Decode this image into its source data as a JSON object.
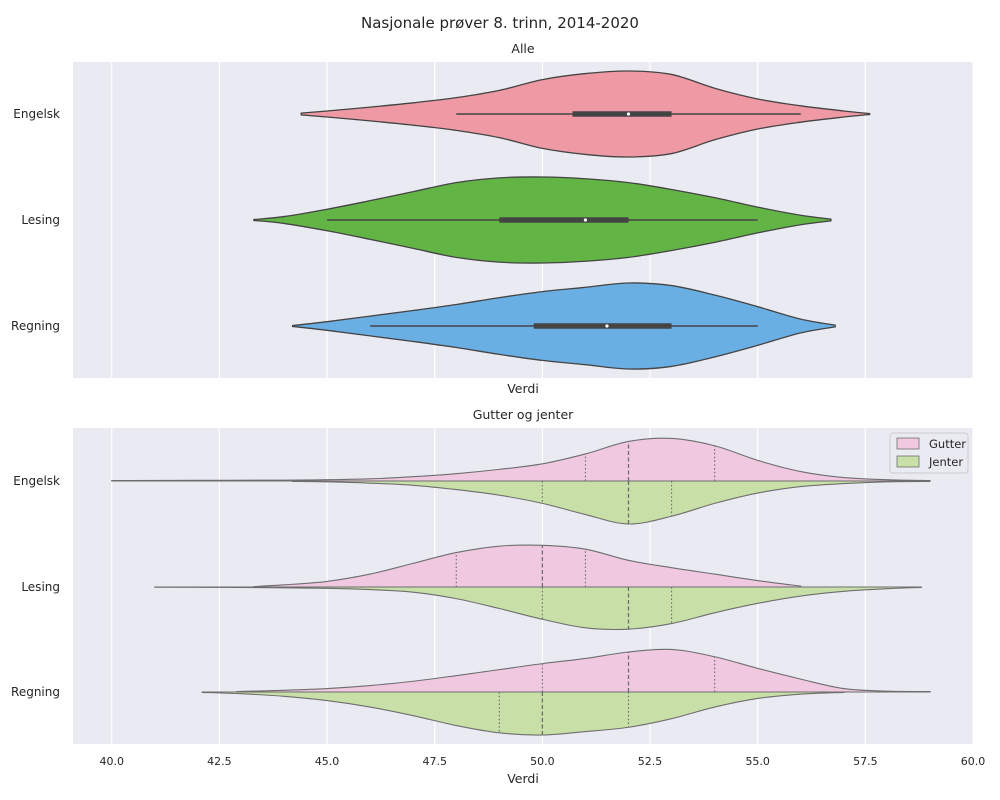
{
  "title": "Nasjonale prøver 8. trinn, 2014-2020",
  "colors": {
    "plot_bg": "#eaeaf2",
    "grid": "#ffffff",
    "outline": "#444444",
    "split_outline": "#6e6e6e",
    "engelsk": "#ee99a3",
    "lesing": "#62b545",
    "regning": "#6aafe4",
    "gutter": "#f0c8e0",
    "jenter": "#c8e0a8"
  },
  "chart_data": [
    {
      "type": "violin",
      "title": "Alle",
      "xlabel": "Verdi",
      "ylabel": "",
      "xlim": [
        39.1,
        60.0
      ],
      "grid": true,
      "categories": [
        "Engelsk",
        "Lesing",
        "Regning"
      ],
      "series": [
        {
          "category": "Engelsk",
          "density": [
            [
              44.4,
              0.02
            ],
            [
              45,
              0.07
            ],
            [
              46,
              0.16
            ],
            [
              47,
              0.26
            ],
            [
              48,
              0.38
            ],
            [
              49,
              0.55
            ],
            [
              50,
              0.8
            ],
            [
              51,
              0.94
            ],
            [
              52,
              1.0
            ],
            [
              53,
              0.92
            ],
            [
              54,
              0.6
            ],
            [
              55,
              0.35
            ],
            [
              56,
              0.19
            ],
            [
              57,
              0.07
            ],
            [
              57.6,
              0.01
            ]
          ],
          "box": [
            50.7,
            53.0
          ],
          "whiskers": [
            48.0,
            56.0
          ],
          "median": 52.0
        },
        {
          "category": "Lesing",
          "density": [
            [
              43.3,
              0.01
            ],
            [
              44,
              0.08
            ],
            [
              45,
              0.25
            ],
            [
              46,
              0.45
            ],
            [
              47,
              0.66
            ],
            [
              48,
              0.87
            ],
            [
              49,
              0.98
            ],
            [
              50,
              1.0
            ],
            [
              51,
              0.96
            ],
            [
              52,
              0.87
            ],
            [
              53,
              0.71
            ],
            [
              54,
              0.52
            ],
            [
              55,
              0.3
            ],
            [
              56,
              0.11
            ],
            [
              56.7,
              0.02
            ]
          ],
          "box": [
            49.0,
            52.0
          ],
          "whiskers": [
            45.0,
            55.0
          ],
          "median": 51.0
        },
        {
          "category": "Regning",
          "density": [
            [
              44.2,
              0.01
            ],
            [
              45,
              0.1
            ],
            [
              46,
              0.23
            ],
            [
              47,
              0.36
            ],
            [
              48,
              0.5
            ],
            [
              49,
              0.66
            ],
            [
              50,
              0.8
            ],
            [
              51,
              0.9
            ],
            [
              52,
              1.0
            ],
            [
              53,
              0.94
            ],
            [
              54,
              0.72
            ],
            [
              55,
              0.45
            ],
            [
              56,
              0.16
            ],
            [
              56.8,
              0.02
            ]
          ],
          "box": [
            49.8,
            53.0
          ],
          "whiskers": [
            46.0,
            55.0
          ],
          "median": 51.5
        }
      ]
    },
    {
      "type": "violin",
      "title": "Gutter og jenter",
      "xlabel": "Verdi",
      "ylabel": "",
      "xlim": [
        39.1,
        60.0
      ],
      "xticks": [
        40.0,
        42.5,
        45.0,
        47.5,
        50.0,
        52.5,
        55.0,
        57.5,
        60.0
      ],
      "xtick_labels": [
        "40.0",
        "42.5",
        "45.0",
        "47.5",
        "50.0",
        "52.5",
        "55.0",
        "57.5",
        "60.0"
      ],
      "grid": true,
      "split": true,
      "legend": {
        "position": "top-right",
        "entries": [
          "Gutter",
          "Jenter"
        ]
      },
      "categories": [
        "Engelsk",
        "Lesing",
        "Regning"
      ],
      "series": [
        {
          "name": "Gutter",
          "groups": [
            {
              "category": "Engelsk",
              "density": [
                [
                  40,
                  0.01
                ],
                [
                  42,
                  0.015
                ],
                [
                  44,
                  0.02
                ],
                [
                  45,
                  0.03
                ],
                [
                  46,
                  0.05
                ],
                [
                  47,
                  0.1
                ],
                [
                  48,
                  0.17
                ],
                [
                  49,
                  0.27
                ],
                [
                  50,
                  0.4
                ],
                [
                  51,
                  0.63
                ],
                [
                  52,
                  0.92
                ],
                [
                  53,
                  0.99
                ],
                [
                  54,
                  0.82
                ],
                [
                  55,
                  0.48
                ],
                [
                  56,
                  0.22
                ],
                [
                  57,
                  0.08
                ],
                [
                  58,
                  0.03
                ],
                [
                  59,
                  0.01
                ]
              ],
              "quartiles": [
                51,
                52,
                54
              ]
            },
            {
              "category": "Lesing",
              "density": [
                [
                  43.3,
                  0.01
                ],
                [
                  44,
                  0.05
                ],
                [
                  45,
                  0.13
                ],
                [
                  46,
                  0.3
                ],
                [
                  47,
                  0.55
                ],
                [
                  48,
                  0.8
                ],
                [
                  49,
                  0.95
                ],
                [
                  50,
                  0.97
                ],
                [
                  51,
                  0.88
                ],
                [
                  52,
                  0.62
                ],
                [
                  53,
                  0.45
                ],
                [
                  54,
                  0.3
                ],
                [
                  55,
                  0.15
                ],
                [
                  56,
                  0.02
                ]
              ],
              "quartiles": [
                48,
                50,
                51
              ]
            },
            {
              "category": "Regning",
              "density": [
                [
                  42.9,
                  0.01
                ],
                [
                  44,
                  0.04
                ],
                [
                  45,
                  0.08
                ],
                [
                  46,
                  0.15
                ],
                [
                  47,
                  0.25
                ],
                [
                  48,
                  0.38
                ],
                [
                  49,
                  0.52
                ],
                [
                  50,
                  0.66
                ],
                [
                  51,
                  0.78
                ],
                [
                  52,
                  0.93
                ],
                [
                  53,
                  0.99
                ],
                [
                  54,
                  0.82
                ],
                [
                  55,
                  0.55
                ],
                [
                  56,
                  0.3
                ],
                [
                  57,
                  0.08
                ],
                [
                  58,
                  0.02
                ],
                [
                  59,
                  0.01
                ]
              ],
              "quartiles": [
                50,
                52,
                54
              ]
            }
          ]
        },
        {
          "name": "Jenter",
          "groups": [
            {
              "category": "Engelsk",
              "density": [
                [
                  44.2,
                  0.01
                ],
                [
                  45,
                  0.02
                ],
                [
                  46,
                  0.05
                ],
                [
                  47,
                  0.1
                ],
                [
                  48,
                  0.2
                ],
                [
                  49,
                  0.33
                ],
                [
                  50,
                  0.52
                ],
                [
                  51,
                  0.78
                ],
                [
                  52,
                  1.0
                ],
                [
                  53,
                  0.82
                ],
                [
                  54,
                  0.52
                ],
                [
                  55,
                  0.28
                ],
                [
                  56,
                  0.13
                ],
                [
                  57,
                  0.06
                ],
                [
                  58,
                  0.02
                ],
                [
                  59,
                  0.01
                ]
              ],
              "quartiles": [
                50,
                52,
                53
              ]
            },
            {
              "category": "Lesing",
              "density": [
                [
                  41,
                  0.005
                ],
                [
                  43,
                  0.01
                ],
                [
                  45,
                  0.03
                ],
                [
                  46,
                  0.06
                ],
                [
                  47,
                  0.12
                ],
                [
                  48,
                  0.27
                ],
                [
                  49,
                  0.5
                ],
                [
                  50,
                  0.75
                ],
                [
                  51,
                  0.95
                ],
                [
                  52,
                  0.98
                ],
                [
                  53,
                  0.85
                ],
                [
                  54,
                  0.6
                ],
                [
                  55,
                  0.38
                ],
                [
                  56,
                  0.21
                ],
                [
                  57,
                  0.1
                ],
                [
                  58,
                  0.04
                ],
                [
                  58.8,
                  0.01
                ]
              ],
              "quartiles": [
                50,
                52,
                53
              ]
            },
            {
              "category": "Regning",
              "density": [
                [
                  42.1,
                  0.01
                ],
                [
                  43,
                  0.04
                ],
                [
                  44,
                  0.1
                ],
                [
                  45,
                  0.2
                ],
                [
                  46,
                  0.35
                ],
                [
                  47,
                  0.55
                ],
                [
                  48,
                  0.78
                ],
                [
                  49,
                  0.95
                ],
                [
                  50,
                  1.0
                ],
                [
                  51,
                  0.92
                ],
                [
                  52,
                  0.82
                ],
                [
                  53,
                  0.62
                ],
                [
                  54,
                  0.35
                ],
                [
                  55,
                  0.15
                ],
                [
                  56,
                  0.05
                ],
                [
                  57,
                  0.01
                ]
              ],
              "quartiles": [
                49,
                50,
                52
              ]
            }
          ]
        }
      ]
    }
  ]
}
